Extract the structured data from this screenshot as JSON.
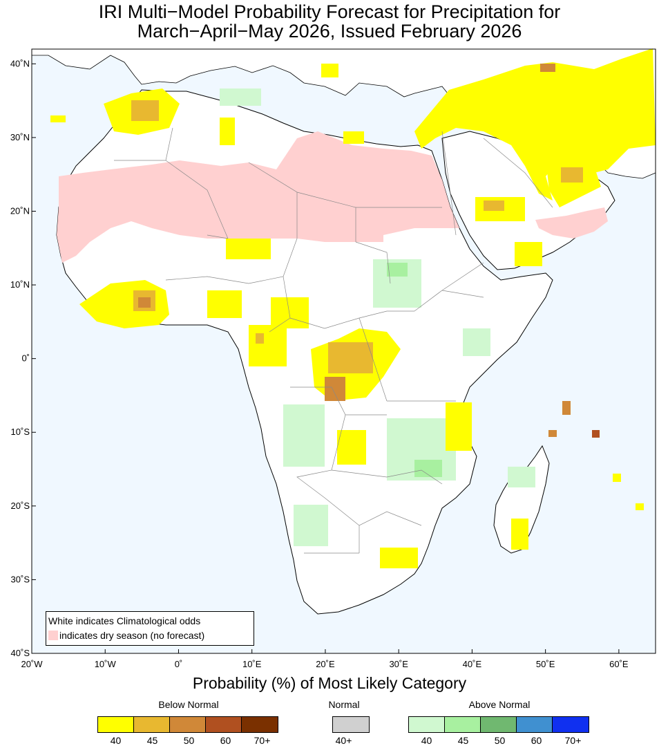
{
  "title_line1": "IRI Multi−Model Probability Forecast for Precipitation for",
  "title_line2": "March−April−May 2026, Issued February 2026",
  "lat_labels": [
    {
      "text": "40˚N",
      "lat": 40
    },
    {
      "text": "30˚N",
      "lat": 30
    },
    {
      "text": "20˚N",
      "lat": 20
    },
    {
      "text": "10˚N",
      "lat": 10
    },
    {
      "text": "0˚",
      "lat": 0
    },
    {
      "text": "10˚S",
      "lat": -10
    },
    {
      "text": "20˚S",
      "lat": -20
    },
    {
      "text": "30˚S",
      "lat": -30
    },
    {
      "text": "40˚S",
      "lat": -40
    }
  ],
  "lon_labels": [
    {
      "text": "20˚W",
      "lon": -20
    },
    {
      "text": "10˚W",
      "lon": -10
    },
    {
      "text": "0˚",
      "lon": 0
    },
    {
      "text": "10˚E",
      "lon": 10
    },
    {
      "text": "20˚E",
      "lon": 20
    },
    {
      "text": "30˚E",
      "lon": 30
    },
    {
      "text": "40˚E",
      "lon": 40
    },
    {
      "text": "50˚E",
      "lon": 50
    },
    {
      "text": "60˚E",
      "lon": 60
    }
  ],
  "extent": {
    "lon_min": -20,
    "lon_max": 65,
    "lat_min": -40,
    "lat_max": 42
  },
  "legend_box": {
    "line1": "White indicates Climatological odds",
    "line2": "indicates dry season (no forecast)"
  },
  "probability_title": "Probability (%) of Most Likely Category",
  "colorbars": {
    "below": {
      "title": "Below Normal",
      "colors": [
        "#ffff00",
        "#e8b830",
        "#d08838",
        "#b05020",
        "#7a3000"
      ],
      "labels": [
        "40",
        "45",
        "50",
        "60",
        "70+"
      ]
    },
    "normal": {
      "title": "Normal",
      "colors": [
        "#d0d0d0"
      ],
      "labels": [
        "40+"
      ]
    },
    "above": {
      "title": "Above Normal",
      "colors": [
        "#d0f8d0",
        "#a8f0a0",
        "#70b870",
        "#4090d0",
        "#1030f0"
      ],
      "labels": [
        "40",
        "45",
        "50",
        "60",
        "70+"
      ]
    }
  },
  "colors": {
    "ocean": "#f0f8ff",
    "land": "#ffffff",
    "dry_season": "#ffd0d0",
    "below_40": "#ffff00",
    "below_45": "#e8b830",
    "below_50": "#d08838",
    "below_60": "#b05020",
    "above_40": "#d0f8d0",
    "above_45": "#a8f0a0"
  }
}
